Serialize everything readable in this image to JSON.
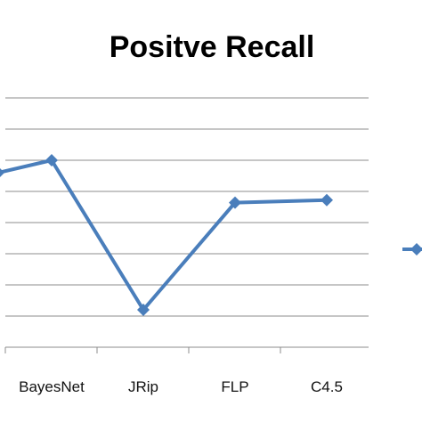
{
  "chart_data": {
    "type": "line",
    "title": "Positve Recall",
    "categories": [
      "",
      "BayesNet",
      "JRip",
      "FLP",
      "C4.5"
    ],
    "series": [
      {
        "values": [
          0.8,
          1.0,
          -1.4,
          0.32,
          0.36
        ],
        "color": "#4a7ebb"
      }
    ],
    "ylim": [
      -2.0,
      2.0
    ],
    "y_gridlines": [
      -1.5,
      -1.0,
      -0.5,
      0.0,
      0.5,
      1.0,
      1.5,
      2.0
    ],
    "grid": true,
    "marker": "diamond",
    "legend": {
      "placement": "right",
      "marker_color": "#4a7ebb"
    },
    "colors": {
      "line": "#4a7ebb",
      "grid": "#8c8c8c",
      "axis": "#8c8c8c"
    }
  }
}
